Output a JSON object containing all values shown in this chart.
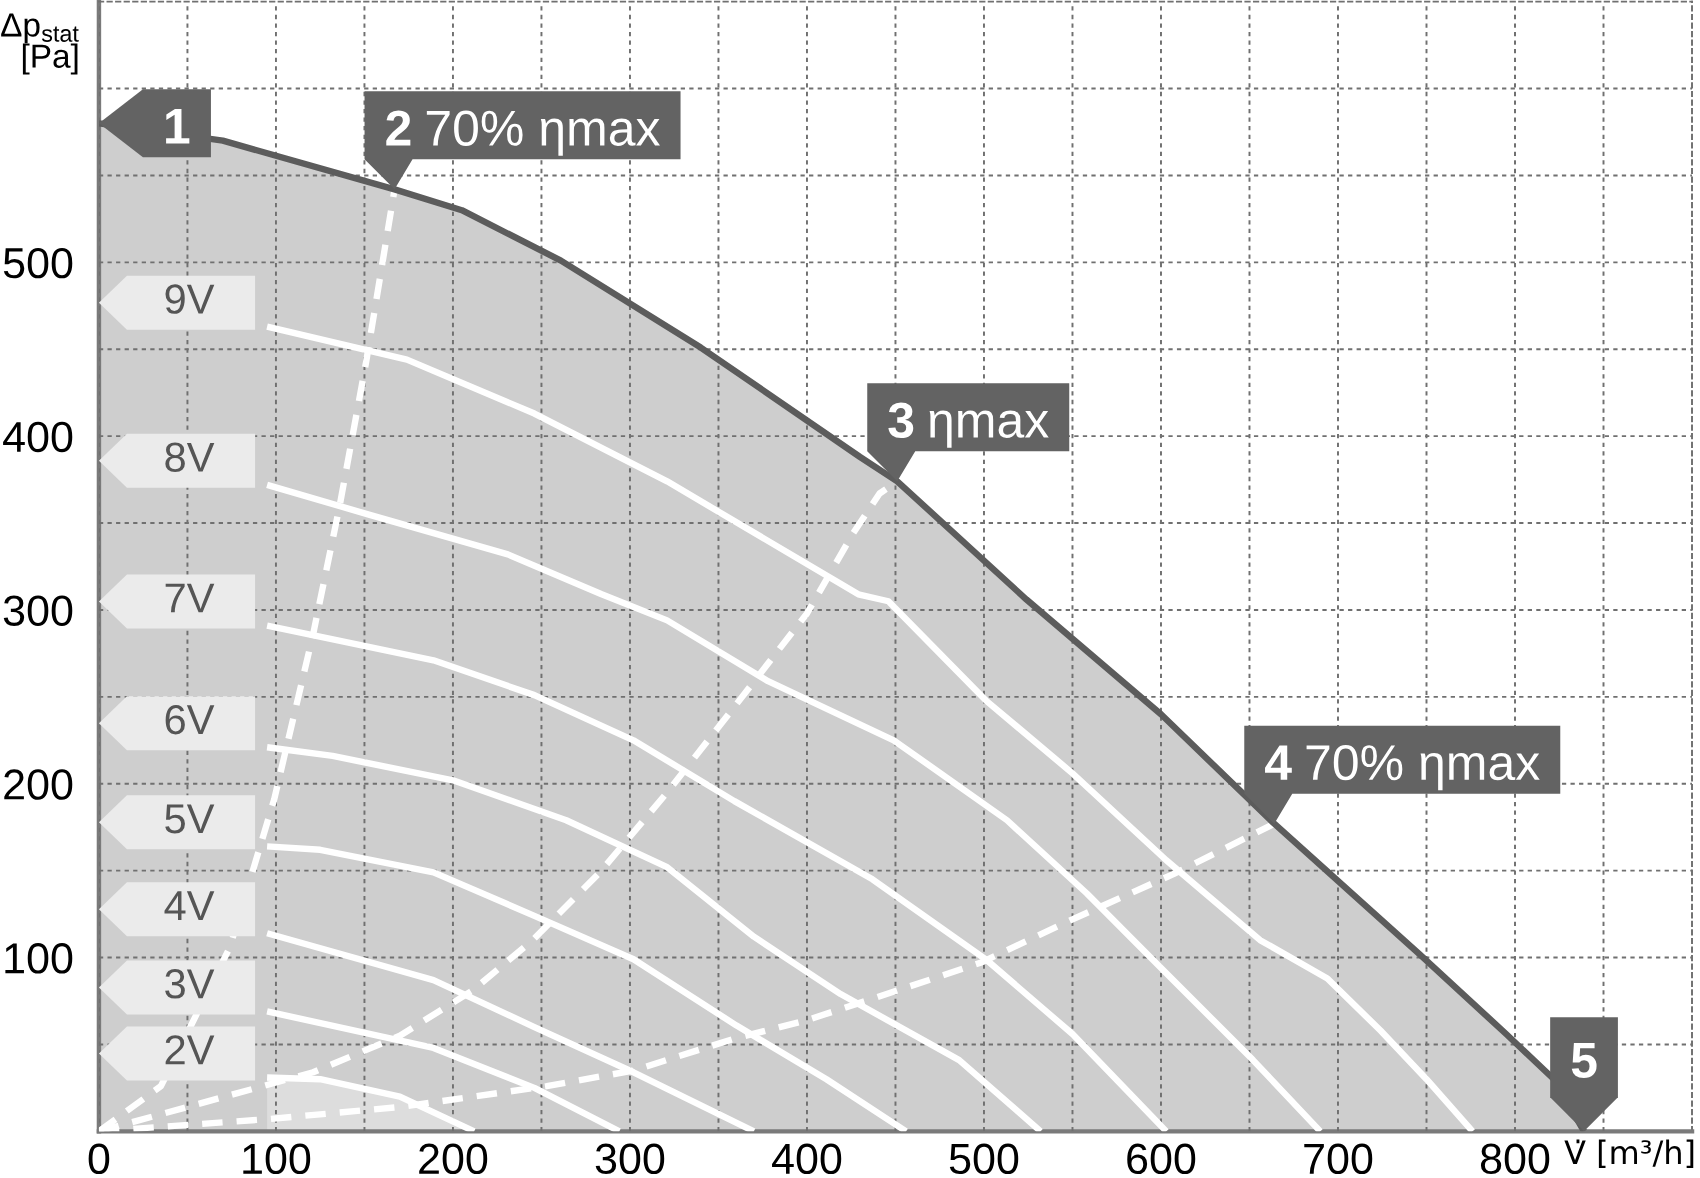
{
  "chart_data": {
    "type": "line",
    "xlabel": "V̇ [m³/h]",
    "ylabel": "Δp$_{stat}$\n[Pa]",
    "xlim": [
      0,
      900
    ],
    "ylim": [
      0,
      650
    ],
    "xticks": [
      0,
      {
        "value": 50,
        "label": null
      },
      100,
      {
        "value": 150,
        "label": null
      },
      200,
      {
        "value": 250,
        "label": null
      },
      300,
      {
        "value": 350,
        "label": null
      },
      400,
      {
        "value": 450,
        "label": null
      },
      500,
      {
        "value": 550,
        "label": null
      },
      600,
      {
        "value": 650,
        "label": null
      },
      700,
      {
        "value": 750,
        "label": null
      },
      800,
      {
        "value": 850,
        "label": null
      }
    ],
    "yticks": [
      {
        "value": 50,
        "label": null
      },
      100,
      {
        "value": 150,
        "label": null
      },
      200,
      {
        "value": 250,
        "label": null
      },
      300,
      {
        "value": 350,
        "label": null
      },
      400,
      {
        "value": 450,
        "label": null
      },
      500,
      {
        "value": 550,
        "label": null
      },
      {
        "value": 600,
        "label": null
      }
    ],
    "grid": true,
    "line_style": "solid",
    "series": [
      {
        "type": "area",
        "color": "#5c5c5c",
        "x": [
          0,
          70,
          167,
          205,
          261,
          340,
          430,
          451,
          524,
          600,
          664,
          746,
          795,
          822,
          839
        ],
        "values": [
          580,
          570,
          542,
          530,
          501,
          451,
          388,
          374,
          306,
          240,
          177,
          102,
          56,
          30,
          0
        ]
      },
      {
        "name": "9V",
        "color": "#ffffff",
        "x": [
          95,
          174,
          246,
          321,
          429,
          446,
          501,
          550,
          603,
          656,
          694,
          724,
          750,
          776
        ],
        "values": [
          463,
          444,
          413,
          374,
          309,
          305,
          248,
          206,
          156,
          110,
          88,
          58,
          30,
          0
        ]
      },
      {
        "name": "8V",
        "color": "#ffffff",
        "x": [
          95,
          152,
          231,
          284,
          321,
          378,
          449,
          513,
          558,
          603,
          652,
          690
        ],
        "values": [
          372,
          355,
          332,
          309,
          294,
          259,
          225,
          179,
          137,
          91,
          41,
          0
        ]
      },
      {
        "name": "7V",
        "color": "#ffffff",
        "x": [
          95,
          189,
          246,
          302,
          359,
          437,
          501,
          550,
          603
        ],
        "values": [
          291,
          271,
          251,
          225,
          190,
          145,
          99,
          56,
          0
        ]
      },
      {
        "name": "6V",
        "color": "#ffffff",
        "x": [
          95,
          132,
          200,
          264,
          321,
          370,
          419,
          486,
          532
        ],
        "values": [
          221,
          216,
          202,
          179,
          152,
          112,
          79,
          41,
          0
        ]
      },
      {
        "name": "5V",
        "color": "#ffffff",
        "x": [
          95,
          125,
          189,
          246,
          302,
          360,
          411,
          456
        ],
        "values": [
          164,
          162,
          149,
          124,
          99,
          61,
          30,
          0
        ]
      },
      {
        "name": "4V",
        "color": "#ffffff",
        "x": [
          95,
          189,
          246,
          302,
          370
        ],
        "values": [
          114,
          87,
          60,
          34,
          0
        ]
      },
      {
        "name": "3V",
        "color": "#ffffff",
        "x": [
          95,
          189,
          246,
          294
        ],
        "values": [
          69,
          48,
          25,
          0
        ]
      },
      {
        "name": "2V",
        "type": "area",
        "color": "#ffffff",
        "x": [
          95,
          125,
          170,
          212
        ],
        "values": [
          31,
          30,
          20,
          0
        ]
      },
      {
        "color": "#ffffff",
        "line_style": "dashed",
        "x": [
          0,
          35,
          74,
          99,
          121,
          136,
          151,
          167
        ],
        "values": [
          0,
          26,
          106,
          191,
          286,
          360,
          443,
          542
        ]
      },
      {
        "color": "#ffffff",
        "line_style": "dashed",
        "x": [
          0,
          121,
          170,
          211,
          245,
          283,
          321,
          358,
          400,
          426,
          441,
          451
        ],
        "values": [
          0,
          34,
          55,
          81,
          110,
          149,
          195,
          243,
          298,
          344,
          367,
          374
        ]
      },
      {
        "color": "#ffffff",
        "line_style": "dashed",
        "x": [
          0,
          95,
          170,
          253,
          302,
          358,
          400,
          445,
          498,
          550,
          607,
          664
        ],
        "values": [
          0,
          7,
          14,
          26,
          35,
          53,
          64,
          79,
          97,
          122,
          148,
          177
        ]
      }
    ],
    "annotations": [
      {
        "text": "1",
        "x": 0,
        "y": 580
      },
      {
        "text": "2 70% ηmax",
        "x": 167,
        "y": 542
      },
      {
        "text": "3 ηmax",
        "x": 451,
        "y": 374
      },
      {
        "text": "4 70% ηmax",
        "x": 664,
        "y": 177
      },
      {
        "text": "5",
        "x": 839,
        "y": 0
      }
    ]
  }
}
